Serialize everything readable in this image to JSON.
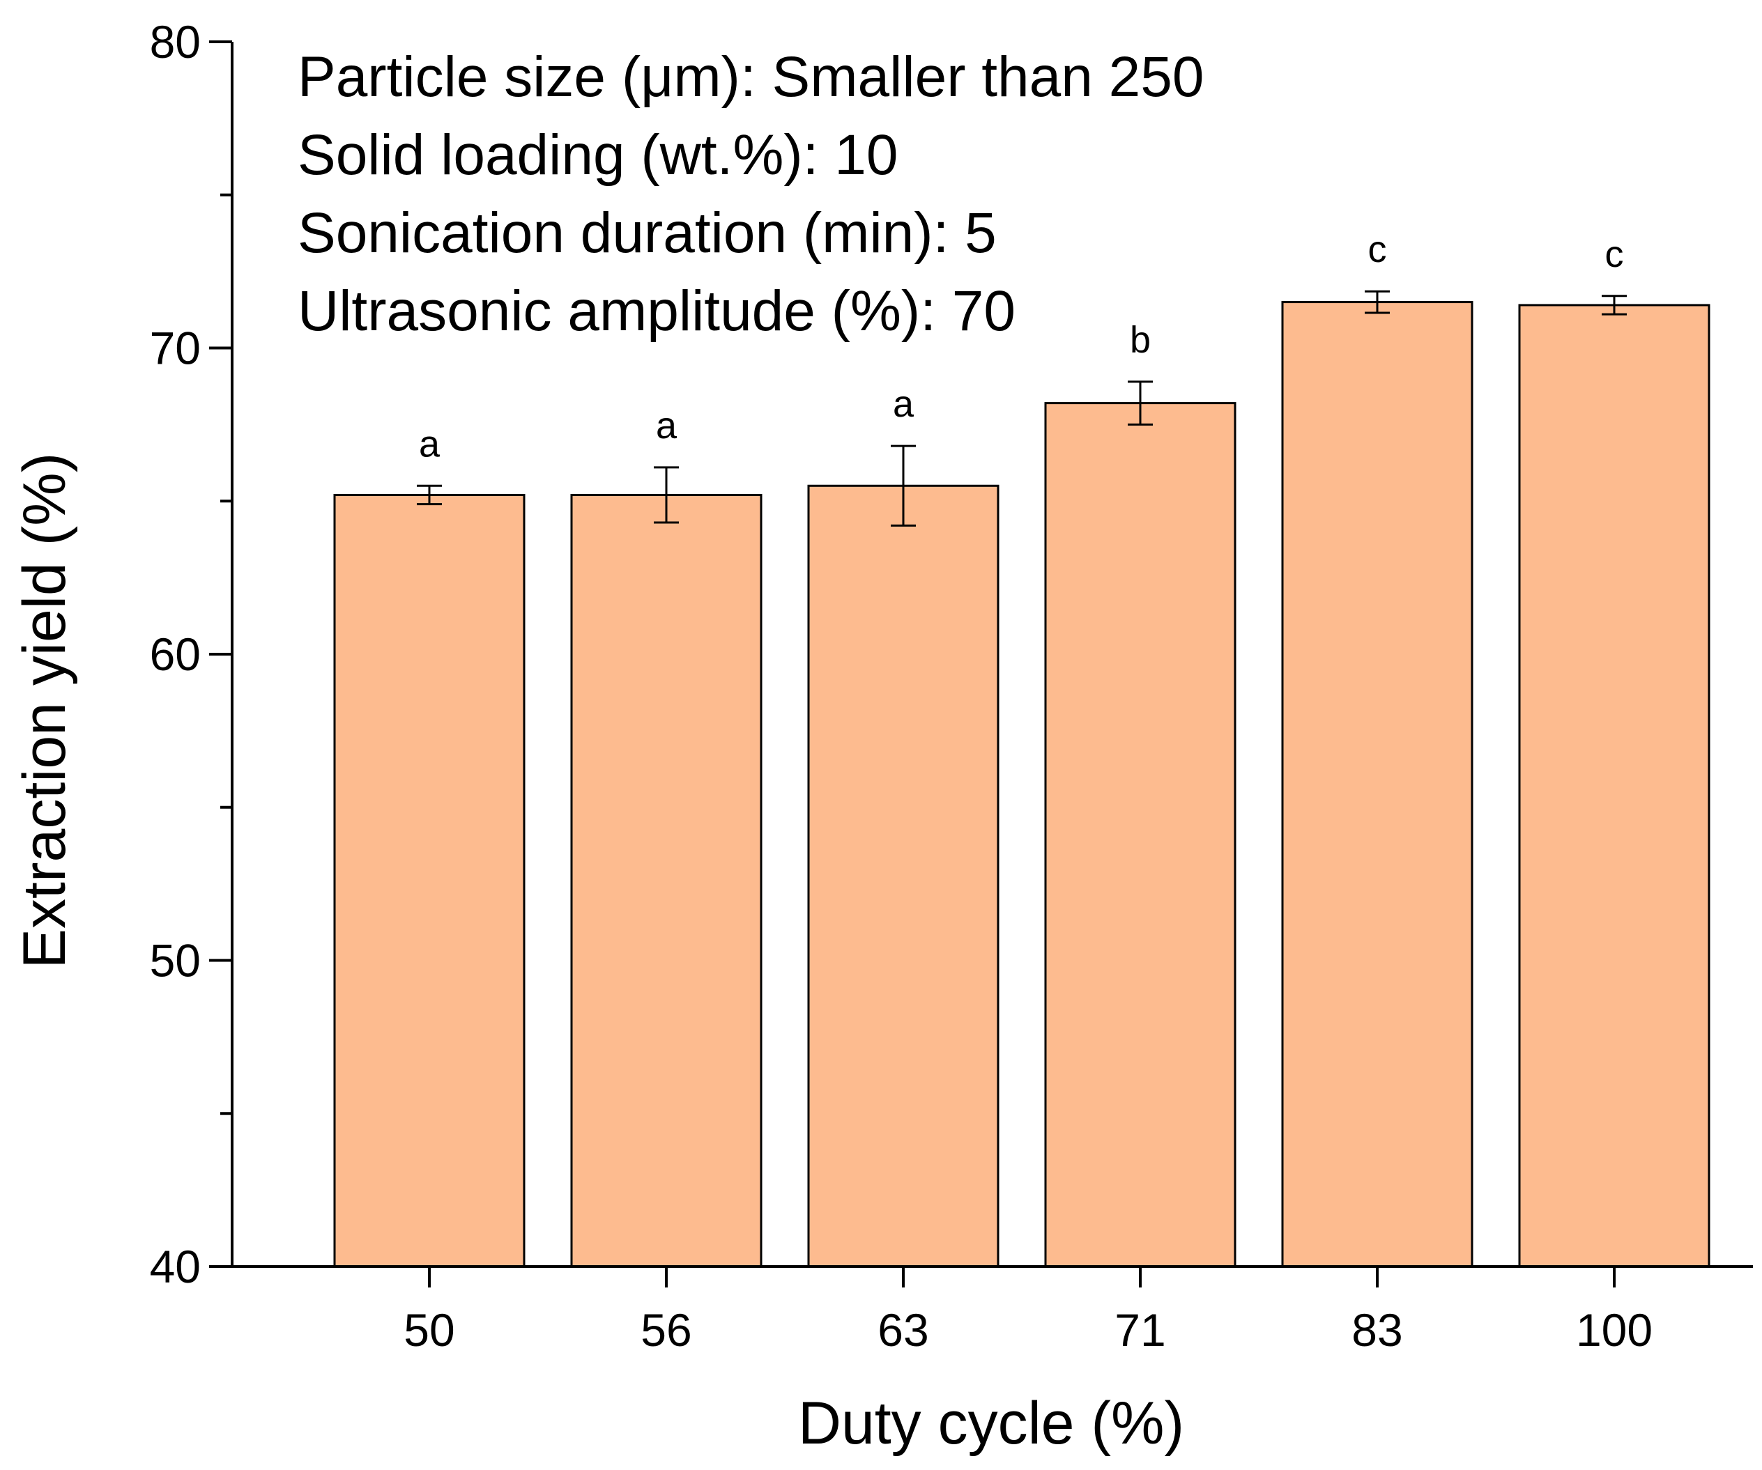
{
  "chart_data": {
    "type": "bar",
    "categories": [
      "50",
      "56",
      "63",
      "71",
      "83",
      "100"
    ],
    "values": [
      65.2,
      65.2,
      65.5,
      68.2,
      71.5,
      71.4
    ],
    "errors": [
      0.3,
      0.9,
      1.3,
      0.7,
      0.35,
      0.3
    ],
    "significance": [
      "a",
      "a",
      "a",
      "b",
      "c",
      "c"
    ],
    "xlabel": "Duty cycle (%)",
    "ylabel": "Extraction yield (%)",
    "ylim": [
      40,
      80
    ],
    "yticks": [
      40,
      50,
      60,
      70,
      80
    ],
    "y_minor_step": 5,
    "grid": false,
    "legend": "none",
    "annotations": [
      "Particle size (μm): Smaller than 250",
      "Solid loading (wt.%): 10",
      "Sonication duration (min): 5",
      "Ultrasonic amplitude (%): 70"
    ]
  },
  "colors": {
    "bar_fill": "#FDBB8F",
    "bar_stroke": "#000000",
    "axis": "#000000"
  }
}
